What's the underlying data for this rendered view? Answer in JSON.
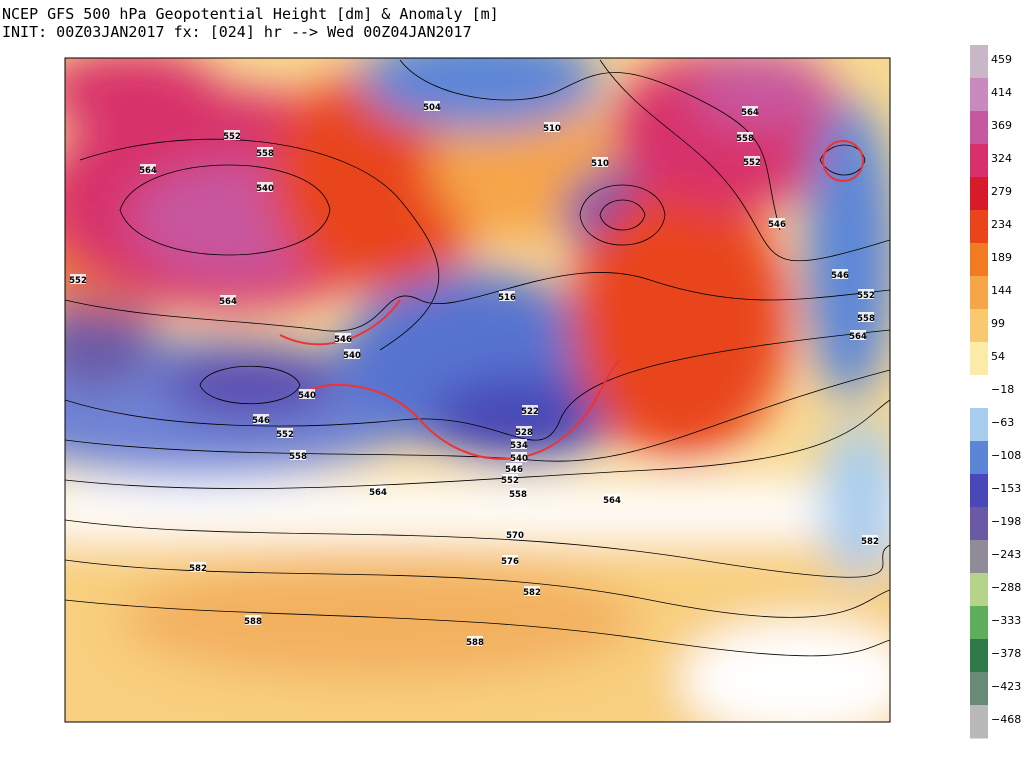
{
  "header": {
    "title": "NCEP GFS 500 hPa Geopotential Height [dm] & Anomaly [m]",
    "subtitle": "INIT: 00Z03JAN2017 fx: [024] hr --> Wed 00Z04JAN2017"
  },
  "colorbar": {
    "labels": [
      "459",
      "414",
      "369",
      "324",
      "279",
      "234",
      "189",
      "144",
      "99",
      "54",
      "−18",
      "−63",
      "−108",
      "−153",
      "−198",
      "−243",
      "−288",
      "−333",
      "−378",
      "−423",
      "−468"
    ],
    "colors": [
      "#c9b6c6",
      "#c98bbf",
      "#c7579f",
      "#d8306a",
      "#d81b2a",
      "#e9441c",
      "#f27a22",
      "#f6a548",
      "#f8c96e",
      "#fbeaa8",
      "#ffffff",
      "#a9cdef",
      "#5b86d8",
      "#4a48b8",
      "#6a5aa6",
      "#8f8b98",
      "#b4d48a",
      "#5fae5e",
      "#2e7a4a",
      "#6a8a78",
      "#b9b9b9"
    ]
  },
  "map": {
    "contour_labels": [
      "504",
      "510",
      "510",
      "564",
      "558",
      "552",
      "546",
      "546",
      "552",
      "558",
      "564",
      "582",
      "552",
      "558",
      "564",
      "540",
      "552",
      "564",
      "516",
      "546",
      "540",
      "540",
      "546",
      "552",
      "558",
      "522",
      "528",
      "534",
      "540",
      "546",
      "552",
      "558",
      "564",
      "564",
      "570",
      "576",
      "582",
      "582",
      "588",
      "588"
    ]
  }
}
